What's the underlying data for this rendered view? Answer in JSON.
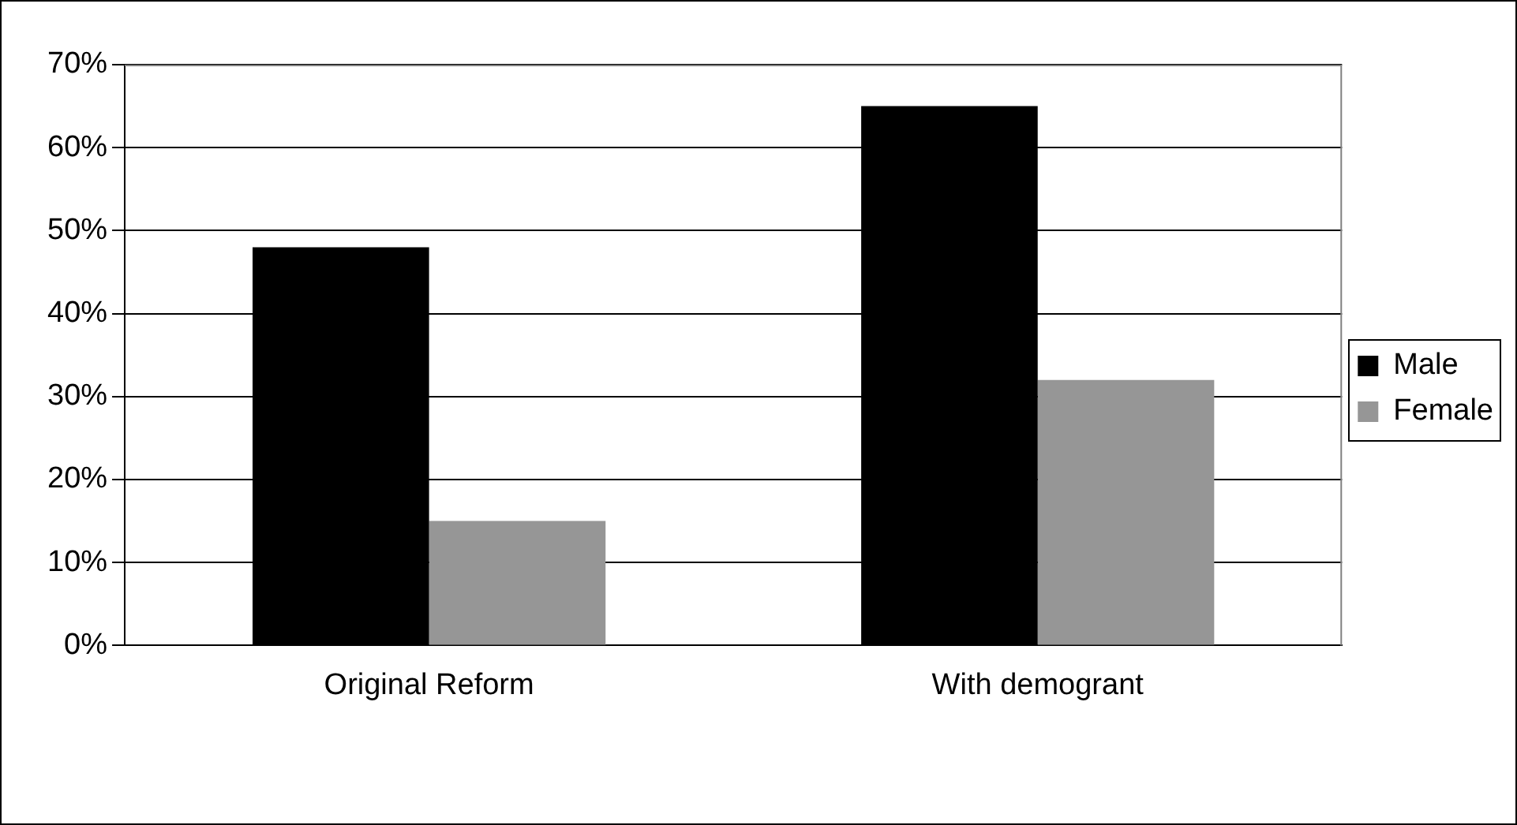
{
  "chart_data": {
    "type": "bar",
    "categories": [
      "Original Reform",
      "With demogrant"
    ],
    "series": [
      {
        "name": "Male",
        "color": "#000000",
        "values": [
          48,
          65
        ]
      },
      {
        "name": "Female",
        "color": "#969696",
        "values": [
          15,
          32
        ]
      }
    ],
    "ylim": [
      0,
      70
    ],
    "yticks": [
      {
        "value": 0,
        "label": "0%"
      },
      {
        "value": 10,
        "label": "10%"
      },
      {
        "value": 20,
        "label": "20%"
      },
      {
        "value": 30,
        "label": "30%"
      },
      {
        "value": 40,
        "label": "40%"
      },
      {
        "value": 50,
        "label": "50%"
      },
      {
        "value": 60,
        "label": "60%"
      },
      {
        "value": 70,
        "label": "70%"
      }
    ],
    "grid": "y",
    "legend": "right"
  }
}
